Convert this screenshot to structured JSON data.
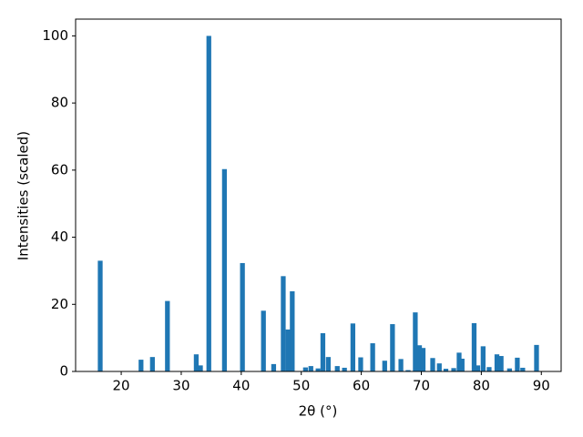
{
  "chart_data": {
    "type": "bar",
    "x_label": "2θ (°)",
    "y_label": "Intensities (scaled)",
    "color": "#1f77b4",
    "x": [
      16.5,
      23.3,
      25.2,
      27.7,
      32.5,
      33.2,
      34.6,
      37.2,
      40.2,
      43.7,
      45.4,
      47.0,
      47.8,
      48.5,
      50.7,
      51.6,
      52.8,
      53.6,
      54.5,
      56.0,
      57.2,
      58.6,
      59.9,
      61.9,
      63.9,
      65.2,
      66.6,
      67.8,
      69.0,
      69.7,
      70.3,
      71.9,
      73.0,
      74.1,
      75.4,
      76.3,
      76.8,
      78.8,
      79.4,
      80.3,
      81.3,
      82.6,
      83.3,
      84.7,
      86.0,
      86.9,
      89.2
    ],
    "values": [
      33,
      3.5,
      4.3,
      21,
      5.1,
      1.8,
      100,
      60.3,
      32.3,
      18.1,
      2.2,
      28.4,
      12.5,
      23.9,
      1.2,
      1.6,
      0.9,
      11.4,
      4.3,
      1.6,
      1.1,
      14.3,
      4.2,
      8.4,
      3.2,
      14.1,
      3.7,
      0.4,
      17.6,
      7.8,
      7.0,
      4.0,
      2.4,
      0.8,
      1.0,
      5.6,
      3.8,
      14.4,
      1.8,
      7.5,
      1.3,
      5.1,
      4.6,
      0.9,
      4.1,
      1.1,
      7.9
    ],
    "xlim": [
      12.4,
      93.3
    ],
    "ylim": [
      0,
      105
    ],
    "xticks": [
      20,
      30,
      40,
      50,
      60,
      70,
      80,
      90
    ],
    "yticks": [
      0,
      20,
      40,
      60,
      80,
      100
    ]
  }
}
